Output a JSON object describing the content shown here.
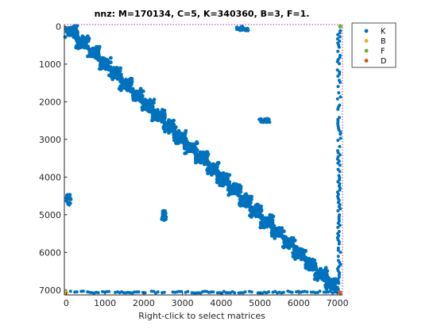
{
  "chart_data": {
    "type": "scatter",
    "title": "nnz: M=170134, C=5, K=340360, B=3, F=1.",
    "xlabel": "Right-click to select matrices",
    "ylabel": "",
    "xlim": [
      -50,
      7130
    ],
    "ylim": [
      7130,
      -50
    ],
    "y_reversed": true,
    "xticks": [
      0,
      1000,
      2000,
      3000,
      4000,
      5000,
      6000,
      7000
    ],
    "yticks": [
      0,
      1000,
      2000,
      3000,
      4000,
      5000,
      6000,
      7000
    ],
    "grid": false,
    "legend_position": "top-right outside",
    "series": [
      {
        "name": "K",
        "color": "#0072BD"
      },
      {
        "name": "B",
        "color": "#EDB120"
      },
      {
        "name": "F",
        "color": "#77AC30"
      },
      {
        "name": "D",
        "color": "#D95319"
      }
    ],
    "diagonal_blocks": [
      [
        0,
        280
      ],
      [
        280,
        560
      ],
      [
        560,
        840
      ],
      [
        840,
        1120
      ],
      [
        1120,
        1400
      ],
      [
        1400,
        1680
      ],
      [
        1680,
        1960
      ],
      [
        1960,
        2240
      ],
      [
        2240,
        2520
      ],
      [
        2520,
        2800
      ],
      [
        2800,
        3080
      ],
      [
        3080,
        3360
      ],
      [
        3360,
        3640
      ],
      [
        3640,
        3920
      ],
      [
        3920,
        4200
      ],
      [
        4200,
        4480
      ],
      [
        4480,
        4760
      ],
      [
        4760,
        5040
      ],
      [
        5040,
        5320
      ],
      [
        5320,
        5600
      ],
      [
        5600,
        5880
      ],
      [
        5880,
        6160
      ],
      [
        6160,
        6440
      ],
      [
        6440,
        6720
      ],
      [
        6720,
        6960
      ]
    ],
    "off_diagonal_blocks": [
      {
        "x": [
          4400,
          4700
        ],
        "y": [
          0,
          120
        ]
      },
      {
        "x": [
          4980,
          5250
        ],
        "y": [
          2450,
          2550
        ]
      },
      {
        "x": [
          2450,
          2580
        ],
        "y": [
          4880,
          5150
        ]
      },
      {
        "x": [
          0,
          120
        ],
        "y": [
          4450,
          4750
        ]
      }
    ],
    "border_columns": [
      {
        "x": [
          7000,
          7080
        ],
        "y": [
          0,
          7000
        ]
      }
    ],
    "border_rows": [
      {
        "x": [
          0,
          7000
        ],
        "y": [
          7030,
          7080
        ]
      }
    ],
    "corner_points": [
      {
        "x": 0,
        "y": 7070,
        "series": "B"
      },
      {
        "x": 7070,
        "y": 7070,
        "series": "D"
      },
      {
        "x": 7070,
        "y": 0,
        "series": "F"
      }
    ]
  }
}
